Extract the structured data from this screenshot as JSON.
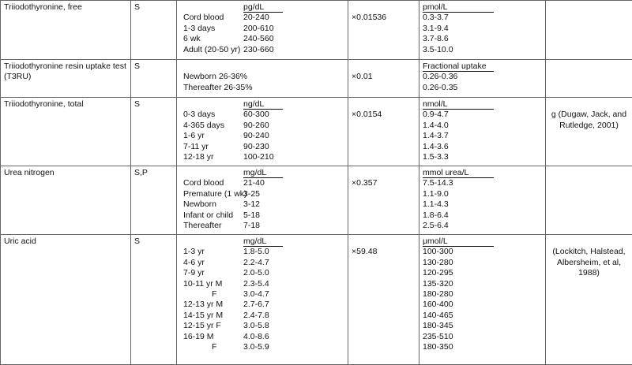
{
  "tests": [
    {
      "name": "Triiodothyronine, free",
      "specimen": "S",
      "unit": "pg/dL",
      "ranges": [
        {
          "age": "Cord blood",
          "value": "20-240"
        },
        {
          "age": "1-3 days",
          "value": "200-610"
        },
        {
          "age": "6 wk",
          "value": "240-560"
        },
        {
          "age": "Adult (20-50 yr)",
          "value": "230-660"
        }
      ],
      "factor": "×0.01536",
      "si_unit": "pmol/L",
      "si_values": [
        "0.3-3.7",
        "3.1-9.4",
        "3.7-8.6",
        "3.5-10.0"
      ]
    },
    {
      "name": "Triiodothyronine resin uptake test (T3RU)",
      "specimen": "S",
      "ranges": [
        {
          "age": "Newborn 26-36%"
        },
        {
          "age": "Thereafter 26-35%"
        }
      ],
      "factor": "×0.01",
      "si_unit": "Fractional uptake",
      "si_values": [
        "0.26-0.36",
        "0.26-0.35"
      ]
    },
    {
      "name": "Triiodothyronine, total",
      "specimen": "S",
      "unit": "ng/dL",
      "ranges": [
        {
          "age": "0-3 days",
          "value": "60-300"
        },
        {
          "age": "4-365 days",
          "value": "90-260"
        },
        {
          "age": "1-6 yr",
          "value": "90-240"
        },
        {
          "age": "7-11 yr",
          "value": "90-230"
        },
        {
          "age": "12-18 yr",
          "value": "100-210"
        }
      ],
      "factor": "×0.0154",
      "si_unit": "nmol/L",
      "si_values": [
        "0.9-4.7",
        "1.4-4.0",
        "1.4-3.7",
        "1.4-3.6",
        "1.5-3.3"
      ],
      "reference": "g (Dugaw, Jack, and Rutledge, 2001)"
    },
    {
      "name": "Urea nitrogen",
      "specimen": "S,P",
      "unit": "mg/dL",
      "ranges": [
        {
          "age": "Cord blood",
          "value": "21-40"
        },
        {
          "age": "Premature (1 wk)",
          "value": "3-25"
        },
        {
          "age": "Newborn",
          "value": "3-12"
        },
        {
          "age": "Infant or child",
          "value": "5-18"
        },
        {
          "age": "Thereafter",
          "value": "7-18"
        }
      ],
      "factor": "×0.357",
      "si_unit": "mmol urea/L",
      "si_values": [
        "7.5-14.3",
        "1.1-9.0",
        "1.1-4.3",
        "1.8-6.4",
        "2.5-6.4"
      ]
    },
    {
      "name": "Uric acid",
      "specimen": "S",
      "unit": "mg/dL",
      "ranges": [
        {
          "age": "1-3 yr",
          "value": "1.8-5.0"
        },
        {
          "age": "4-6 yr",
          "value": "2.2-4.7"
        },
        {
          "age": "7-9 yr",
          "value": "2.0-5.0"
        },
        {
          "age": "10-11 yr M",
          "value": "2.3-5.4"
        },
        {
          "age": "F",
          "value": "3.0-4.7"
        },
        {
          "age": "12-13 yr M",
          "value": "2.7-6.7"
        },
        {
          "age": "14-15 yr M",
          "value": "2.4-7.8"
        },
        {
          "age": "12-15 yr F",
          "value": "3.0-5.8"
        },
        {
          "age": "16-19 M",
          "value": "4.0-8.6"
        },
        {
          "age": "F",
          "value": "3.0-5.9"
        }
      ],
      "factor": "×59.48",
      "si_unit": "μmol/L",
      "si_values": [
        "100-300",
        "130-280",
        "120-295",
        "135-320",
        "180-280",
        "160-400",
        "140-465",
        "180-345",
        "235-510",
        "180-350"
      ],
      "reference": "(Lockitch, Halstead, Albersheim, et al, 1988)"
    }
  ]
}
